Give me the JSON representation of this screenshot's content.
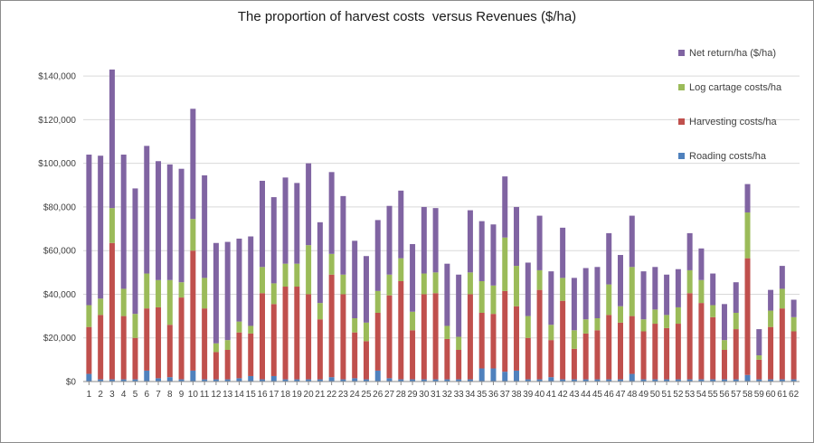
{
  "chart_data": {
    "type": "bar",
    "stacked": true,
    "title": "The proportion of harvest costs  versus Revenues ($/ha)",
    "xlabel": "",
    "ylabel": "",
    "ylim": [
      0,
      150000
    ],
    "yticks": [
      0,
      20000,
      40000,
      60000,
      80000,
      100000,
      120000,
      140000
    ],
    "ytick_labels": [
      "$0",
      "$20,000",
      "$40,000",
      "$60,000",
      "$80,000",
      "$100,000",
      "$120,000",
      "$140,000"
    ],
    "grid": true,
    "legend_position": "right",
    "categories": [
      "1",
      "2",
      "3",
      "4",
      "5",
      "6",
      "7",
      "8",
      "9",
      "10",
      "11",
      "12",
      "13",
      "14",
      "15",
      "16",
      "17",
      "18",
      "19",
      "20",
      "21",
      "22",
      "23",
      "24",
      "25",
      "26",
      "27",
      "28",
      "29",
      "30",
      "31",
      "32",
      "33",
      "34",
      "35",
      "36",
      "37",
      "38",
      "39",
      "40",
      "41",
      "42",
      "43",
      "44",
      "45",
      "46",
      "47",
      "48",
      "49",
      "50",
      "51",
      "52",
      "53",
      "54",
      "55",
      "56",
      "57",
      "58",
      "59",
      "60",
      "61",
      "62"
    ],
    "series": [
      {
        "name": "Roading costs/ha",
        "color": "#4f81bd",
        "values": [
          3500,
          1000,
          1000,
          1000,
          1000,
          5000,
          1500,
          2000,
          1000,
          5000,
          1000,
          1000,
          1000,
          1500,
          2500,
          1000,
          2500,
          1000,
          1000,
          1000,
          1000,
          2000,
          1000,
          1500,
          1000,
          5000,
          1500,
          1000,
          1000,
          1000,
          1000,
          1000,
          1000,
          1000,
          6000,
          6000,
          4500,
          5000,
          1000,
          1000,
          2000,
          1000,
          1000,
          1000,
          1000,
          1000,
          1000,
          3500,
          1000,
          1000,
          1000,
          1000,
          1000,
          1000,
          1000,
          1000,
          1000,
          3000,
          1000,
          1000,
          1000,
          1000
        ]
      },
      {
        "name": "Harvesting costs/ha",
        "color": "#c0504d",
        "values": [
          21500,
          29500,
          62500,
          29000,
          19000,
          28500,
          32500,
          24000,
          37500,
          55000,
          32500,
          12500,
          13500,
          21000,
          19500,
          39500,
          33000,
          42500,
          42500,
          39000,
          27500,
          47000,
          39000,
          21000,
          17500,
          26500,
          38000,
          45000,
          22500,
          39000,
          39500,
          18500,
          13500,
          39000,
          25500,
          25000,
          37000,
          29500,
          19000,
          41000,
          17000,
          36000,
          14000,
          21000,
          22500,
          29500,
          26000,
          26500,
          22000,
          25500,
          23500,
          25500,
          39500,
          35000,
          28500,
          13500,
          23000,
          53500,
          9000,
          24000,
          32500,
          22000
        ]
      },
      {
        "name": "Log cartage costs/ha",
        "color": "#9bbb59",
        "values": [
          10000,
          7500,
          16000,
          12500,
          11000,
          16000,
          12500,
          20500,
          7000,
          14500,
          14000,
          4000,
          4500,
          5000,
          3500,
          12000,
          9500,
          10500,
          10500,
          22500,
          7500,
          9500,
          9000,
          6500,
          8500,
          10000,
          9500,
          10500,
          8500,
          9500,
          9500,
          6000,
          6000,
          10000,
          14500,
          13000,
          24500,
          18500,
          10000,
          9000,
          7000,
          10500,
          8500,
          6500,
          5500,
          14000,
          7500,
          22500,
          5500,
          6500,
          6000,
          7500,
          10500,
          10500,
          5500,
          4500,
          7500,
          21000,
          2000,
          7500,
          9000,
          6500
        ]
      },
      {
        "name": "Net return/ha ($/ha)",
        "color": "#8064a2",
        "values": [
          69000,
          65500,
          63500,
          61500,
          57500,
          58500,
          54500,
          53000,
          52000,
          50500,
          47000,
          46000,
          45000,
          38000,
          41000,
          39500,
          39500,
          39500,
          37000,
          37500,
          37000,
          37500,
          36000,
          35500,
          30500,
          32500,
          31500,
          31000,
          31000,
          30500,
          29500,
          28500,
          28500,
          28500,
          27500,
          28000,
          28000,
          27000,
          24500,
          25000,
          24500,
          23000,
          24000,
          23500,
          23500,
          23500,
          23500,
          23500,
          22000,
          19500,
          18500,
          17500,
          17000,
          14500,
          14500,
          16500,
          14000,
          13000,
          12000,
          9500,
          10500,
          8000
        ]
      }
    ]
  }
}
